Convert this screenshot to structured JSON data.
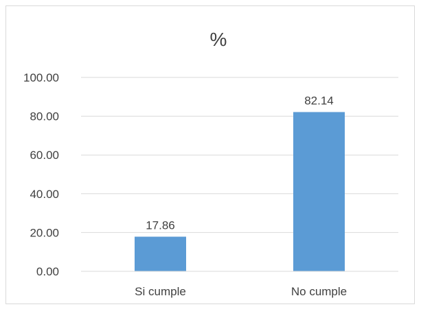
{
  "chart_data": {
    "type": "bar",
    "title": "%",
    "categories": [
      "Si cumple",
      "No cumple"
    ],
    "values": [
      17.86,
      82.14
    ],
    "data_labels": [
      "17.86",
      "82.14"
    ],
    "xlabel": "",
    "ylabel": "",
    "ylim": [
      0,
      100
    ],
    "yticks": [
      "0.00",
      "20.00",
      "40.00",
      "60.00",
      "80.00",
      "100.00"
    ],
    "ytick_values": [
      0,
      20,
      40,
      60,
      80,
      100
    ],
    "grid": true,
    "legend": "none",
    "colors": {
      "bar": "#5b9bd5",
      "grid": "#d9d9d9",
      "text": "#404040"
    }
  }
}
